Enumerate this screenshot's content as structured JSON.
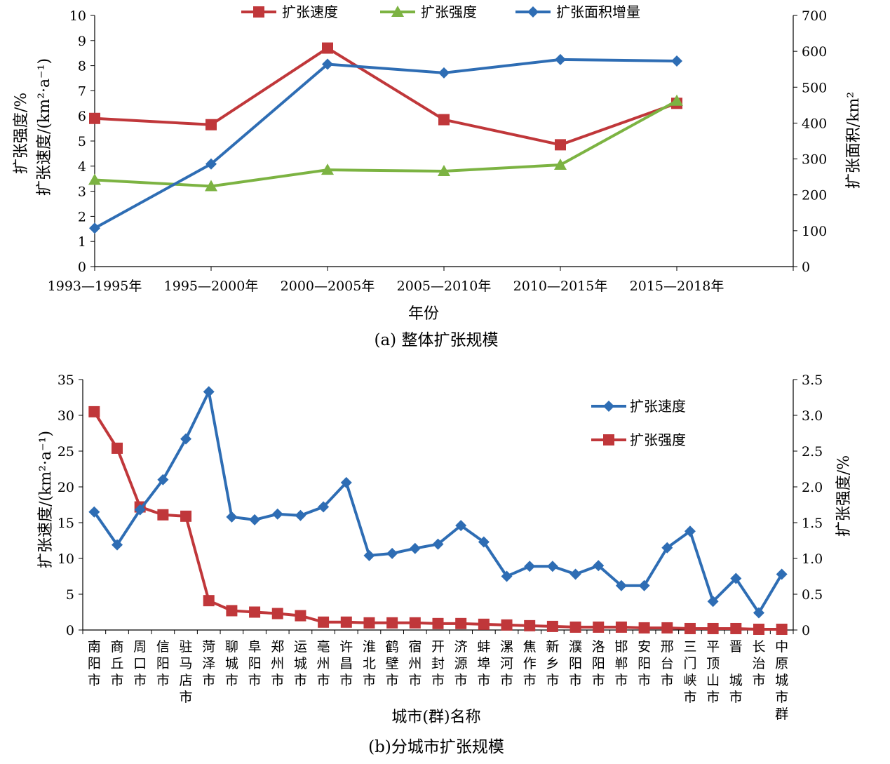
{
  "chart_data": [
    {
      "type": "line",
      "caption": "(a) 整体扩张规模",
      "xlabel": "年份",
      "ylabel_left_line1": "扩张强度/%",
      "ylabel_left_line2": "扩张速度/(km²·a⁻¹)",
      "ylabel_right": "扩张面积/km²",
      "categories": [
        "1993—1995年",
        "1995—2000年",
        "2000—2005年",
        "2005—2010年",
        "2010—2015年",
        "2015—2018年"
      ],
      "y_left_lim": [
        0,
        10
      ],
      "y_left_ticks": [
        "0",
        "1",
        "2",
        "3",
        "4",
        "5",
        "6",
        "7",
        "8",
        "9",
        "10"
      ],
      "y_right_lim": [
        0,
        700
      ],
      "y_right_ticks": [
        "0",
        "100",
        "200",
        "300",
        "400",
        "500",
        "600",
        "700"
      ],
      "legend_position": "top-center",
      "grid": false,
      "series": [
        {
          "name": "扩张速度",
          "axis": "left",
          "color": "#c0373a",
          "marker": "square",
          "values": [
            5.9,
            5.65,
            8.7,
            5.85,
            4.85,
            6.5
          ]
        },
        {
          "name": "扩张强度",
          "axis": "left",
          "color": "#7cb342",
          "marker": "triangle",
          "values": [
            3.45,
            3.2,
            3.85,
            3.8,
            4.05,
            6.6
          ]
        },
        {
          "name": "扩张面积增量",
          "axis": "right",
          "color": "#2e6db4",
          "marker": "diamond",
          "values": [
            107,
            286,
            564,
            540,
            577,
            573
          ]
        }
      ]
    },
    {
      "type": "line",
      "caption": "(b)分城市扩张规模",
      "xlabel": "城市(群)名称",
      "ylabel_left": "扩张速度/(km²·a⁻¹)",
      "ylabel_right": "扩张强度/%",
      "categories": [
        "南阳市",
        "商丘市",
        "周口市",
        "信阳市",
        "驻马店市",
        "菏泽市",
        "聊城市",
        "阜阳市",
        "郑州市",
        "运城市",
        "亳州市",
        "许昌市",
        "淮北市",
        "鹤壁市",
        "宿州市",
        "开封市",
        "济源市",
        "蚌埠市",
        "漯河市",
        "焦作市",
        "新乡市",
        "濮阳市",
        "洛阳市",
        "邯郸市",
        "安阳市",
        "邢台市",
        "三门峡市",
        "平顶山市",
        "晋城市",
        "长治市",
        "中原城市群"
      ],
      "category_label_chars": [
        [
          "南",
          "阳",
          "市"
        ],
        [
          "商",
          "丘",
          "市"
        ],
        [
          "周",
          "口",
          "市"
        ],
        [
          "信",
          "阳",
          "市"
        ],
        [
          "驻",
          "马",
          "店",
          "市"
        ],
        [
          "菏",
          "泽",
          "市"
        ],
        [
          "聊",
          "城",
          "市"
        ],
        [
          "阜",
          "阳",
          "市"
        ],
        [
          "郑",
          "州",
          "市"
        ],
        [
          "运",
          "城",
          "市"
        ],
        [
          "亳",
          "州",
          "市"
        ],
        [
          "许",
          "昌",
          "市"
        ],
        [
          "淮",
          "北",
          "市"
        ],
        [
          "鹤",
          "壁",
          "市"
        ],
        [
          "宿",
          "州",
          "市"
        ],
        [
          "开",
          "封",
          "市"
        ],
        [
          "济",
          "源",
          "市"
        ],
        [
          "蚌",
          "埠",
          "市"
        ],
        [
          "漯",
          "河",
          "市"
        ],
        [
          "焦",
          "作",
          "市"
        ],
        [
          "新",
          "乡",
          "市"
        ],
        [
          "濮",
          "阳",
          "市"
        ],
        [
          "洛",
          "阳",
          "市"
        ],
        [
          "邯",
          "郸",
          "市"
        ],
        [
          "安",
          "阳",
          "市"
        ],
        [
          "邢",
          "台",
          "市"
        ],
        [
          "三",
          "门",
          "峡",
          "市"
        ],
        [
          "平",
          "顶",
          "山",
          "市"
        ],
        [
          "晋",
          "",
          "城",
          "市"
        ],
        [
          "长",
          "治",
          "市"
        ],
        [
          "中",
          "原",
          "城",
          "市",
          "群"
        ]
      ],
      "y_left_lim": [
        0,
        35
      ],
      "y_left_ticks": [
        "0",
        "5",
        "10",
        "15",
        "20",
        "25",
        "30",
        "35"
      ],
      "y_right_lim": [
        0,
        3.5
      ],
      "y_right_ticks": [
        "0",
        "0.5",
        "1.0",
        "1.5",
        "2.0",
        "2.5",
        "3.0",
        "3.5"
      ],
      "legend_position": "top-right",
      "grid": false,
      "series": [
        {
          "name": "扩张速度",
          "axis": "left",
          "color": "#2e6db4",
          "marker": "diamond",
          "values": [
            16.5,
            11.9,
            16.8,
            21.0,
            26.7,
            33.3,
            15.8,
            15.4,
            16.2,
            16.0,
            17.2,
            20.6,
            10.4,
            10.7,
            11.4,
            12.0,
            14.6,
            12.3,
            7.5,
            8.9,
            8.9,
            7.8,
            9.0,
            6.2,
            6.2,
            11.5,
            13.8,
            4.0,
            7.2,
            2.4,
            7.8
          ]
        },
        {
          "name": "扩张强度",
          "axis": "right",
          "color": "#c0373a",
          "marker": "square",
          "values": [
            3.05,
            2.54,
            1.72,
            1.61,
            1.59,
            0.41,
            0.27,
            0.25,
            0.23,
            0.2,
            0.11,
            0.11,
            0.1,
            0.1,
            0.1,
            0.09,
            0.09,
            0.08,
            0.07,
            0.06,
            0.05,
            0.04,
            0.04,
            0.04,
            0.03,
            0.03,
            0.02,
            0.02,
            0.02,
            0.01,
            0.01
          ]
        }
      ]
    }
  ]
}
